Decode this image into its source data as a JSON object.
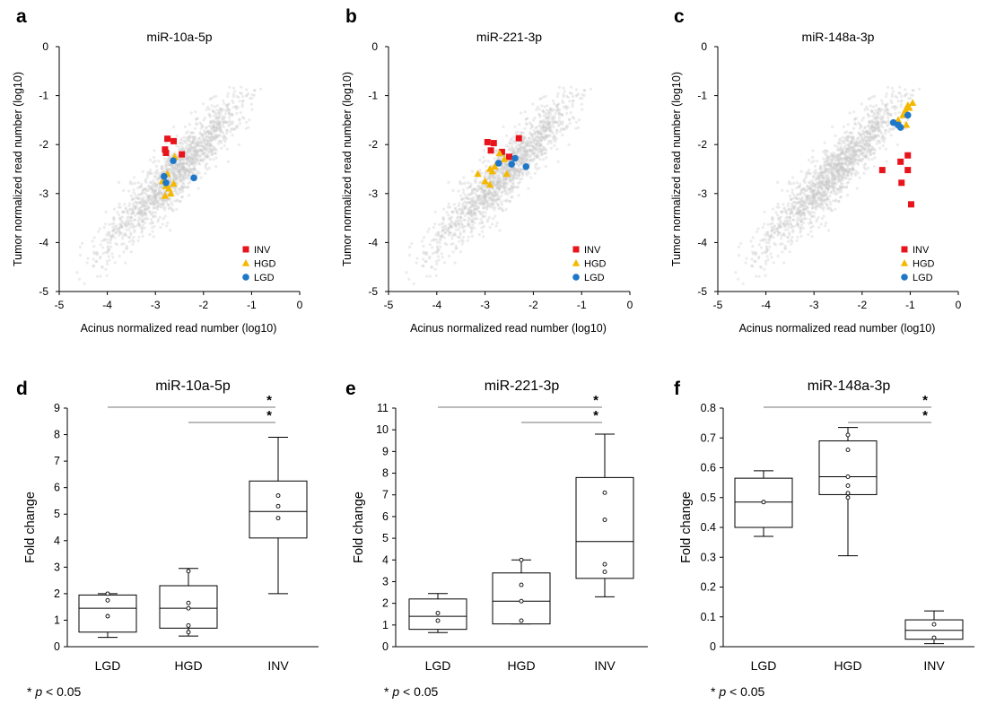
{
  "chart_data": [
    {
      "panel": "a",
      "type": "scatter",
      "title": "miR-10a-5p",
      "xlabel": "Acinus normalized read number (log10)",
      "ylabel": "Tumor normalized read number (log10)",
      "xlim": [
        -5,
        0
      ],
      "ylim": [
        -5,
        0
      ],
      "xticks": [
        -5,
        -4,
        -3,
        -2,
        -1,
        0
      ],
      "yticks": [
        0,
        -1,
        -2,
        -3,
        -4,
        -5
      ],
      "legend": [
        "INV",
        "HGD",
        "LGD"
      ],
      "colors": {
        "INV": "#e8141b",
        "HGD": "#f5b800",
        "LGD": "#1f77c8",
        "background": "#c8c8c8"
      },
      "series": [
        {
          "name": "INV",
          "marker": "square",
          "x": [
            -2.75,
            -2.62,
            -2.8,
            -2.78,
            -2.45
          ],
          "y": [
            -1.88,
            -1.93,
            -2.1,
            -2.17,
            -2.2
          ]
        },
        {
          "name": "HGD",
          "marker": "triangle",
          "x": [
            -2.6,
            -2.75,
            -2.85,
            -2.78,
            -2.72,
            -2.68,
            -2.8,
            -2.62
          ],
          "y": [
            -2.25,
            -2.6,
            -2.75,
            -2.85,
            -2.9,
            -3.0,
            -3.05,
            -2.8
          ]
        },
        {
          "name": "LGD",
          "marker": "circle",
          "x": [
            -2.63,
            -2.82,
            -2.78,
            -2.2
          ],
          "y": [
            -2.33,
            -2.65,
            -2.78,
            -2.68
          ]
        }
      ]
    },
    {
      "panel": "b",
      "type": "scatter",
      "title": "miR-221-3p",
      "xlabel": "Acinus normalized read number (log10)",
      "ylabel": "Tumor normalized read number (log10)",
      "xlim": [
        -5,
        0
      ],
      "ylim": [
        -5,
        0
      ],
      "xticks": [
        -5,
        -4,
        -3,
        -2,
        -1,
        0
      ],
      "yticks": [
        0,
        -1,
        -2,
        -3,
        -4,
        -5
      ],
      "legend": [
        "INV",
        "HGD",
        "LGD"
      ],
      "colors": {
        "INV": "#e8141b",
        "HGD": "#f5b800",
        "LGD": "#1f77c8",
        "background": "#c8c8c8"
      },
      "series": [
        {
          "name": "INV",
          "marker": "square",
          "x": [
            -2.95,
            -2.82,
            -2.88,
            -2.65,
            -2.5,
            -2.3
          ],
          "y": [
            -1.95,
            -1.97,
            -2.12,
            -2.15,
            -2.25,
            -1.87
          ]
        },
        {
          "name": "HGD",
          "marker": "triangle",
          "x": [
            -2.7,
            -2.6,
            -2.8,
            -2.9,
            -2.85,
            -3.15,
            -3.0,
            -2.9,
            -2.55
          ],
          "y": [
            -2.18,
            -2.3,
            -2.45,
            -2.5,
            -2.55,
            -2.6,
            -2.75,
            -2.82,
            -2.6
          ]
        },
        {
          "name": "LGD",
          "marker": "circle",
          "x": [
            -2.72,
            -2.45,
            -2.38,
            -2.15
          ],
          "y": [
            -2.38,
            -2.4,
            -2.28,
            -2.45
          ]
        }
      ]
    },
    {
      "panel": "c",
      "type": "scatter",
      "title": "miR-148a-3p",
      "xlabel": "Acinus normalized read number (log10)",
      "ylabel": "Tumor normalized read number (log10)",
      "xlim": [
        -5,
        0
      ],
      "ylim": [
        -5,
        0
      ],
      "xticks": [
        -5,
        -4,
        -3,
        -2,
        -1,
        0
      ],
      "yticks": [
        0,
        -1,
        -2,
        -3,
        -4,
        -5
      ],
      "legend": [
        "INV",
        "HGD",
        "LGD"
      ],
      "colors": {
        "INV": "#e8141b",
        "HGD": "#f5b800",
        "LGD": "#1f77c8",
        "background": "#c8c8c8"
      },
      "series": [
        {
          "name": "INV",
          "marker": "square",
          "x": [
            -1.58,
            -1.05,
            -1.2,
            -1.05,
            -1.18,
            -0.98
          ],
          "y": [
            -2.52,
            -2.22,
            -2.35,
            -2.52,
            -2.78,
            -3.22
          ]
        },
        {
          "name": "HGD",
          "marker": "triangle",
          "x": [
            -0.95,
            -1.02,
            -1.1,
            -1.15,
            -1.25,
            -1.08,
            -1.05
          ],
          "y": [
            -1.15,
            -1.25,
            -1.3,
            -1.4,
            -1.5,
            -1.6,
            -1.2
          ]
        },
        {
          "name": "LGD",
          "marker": "circle",
          "x": [
            -1.35,
            -1.25,
            -1.2,
            -1.05
          ],
          "y": [
            -1.55,
            -1.6,
            -1.65,
            -1.4
          ]
        }
      ]
    },
    {
      "panel": "d",
      "type": "box",
      "title": "miR-10a-5p",
      "categories": [
        "LGD",
        "HGD",
        "INV"
      ],
      "ylabel": "Fold change",
      "ylim": [
        0,
        9
      ],
      "yticks": [
        0,
        1,
        2,
        3,
        4,
        5,
        6,
        7,
        8,
        9
      ],
      "boxes": [
        {
          "name": "LGD",
          "min": 0.35,
          "q1": 0.55,
          "median": 1.45,
          "q3": 1.95,
          "max": 2.0,
          "points": [
            1.15,
            1.75,
            2.0
          ]
        },
        {
          "name": "HGD",
          "min": 0.4,
          "q1": 0.7,
          "median": 1.45,
          "q3": 2.3,
          "max": 2.95,
          "points": [
            0.55,
            0.8,
            1.45,
            1.65,
            2.85
          ]
        },
        {
          "name": "INV",
          "min": 2.0,
          "q1": 4.1,
          "median": 5.1,
          "q3": 6.25,
          "max": 7.9,
          "points": [
            4.85,
            5.3,
            5.7
          ]
        }
      ],
      "significance": [
        {
          "from": "LGD",
          "to": "INV",
          "label": "*"
        },
        {
          "from": "HGD",
          "to": "INV",
          "label": "*"
        }
      ],
      "footnote": {
        "star": "*",
        "p": "p",
        "rest": "< 0.05"
      }
    },
    {
      "panel": "e",
      "type": "box",
      "title": "miR-221-3p",
      "categories": [
        "LGD",
        "HGD",
        "INV"
      ],
      "ylabel": "Fold change",
      "ylim": [
        0,
        11
      ],
      "yticks": [
        0,
        1,
        2,
        3,
        4,
        5,
        6,
        7,
        8,
        9,
        10,
        11
      ],
      "boxes": [
        {
          "name": "LGD",
          "min": 0.65,
          "q1": 0.8,
          "median": 1.4,
          "q3": 2.2,
          "max": 2.45,
          "points": [
            1.2,
            1.55
          ]
        },
        {
          "name": "HGD",
          "min": 1.05,
          "q1": 1.05,
          "median": 2.1,
          "q3": 3.4,
          "max": 4.0,
          "points": [
            1.2,
            2.1,
            2.85,
            4.0
          ]
        },
        {
          "name": "INV",
          "min": 2.3,
          "q1": 3.15,
          "median": 4.85,
          "q3": 7.8,
          "max": 9.8,
          "points": [
            3.45,
            3.8,
            5.85,
            7.1
          ]
        }
      ],
      "significance": [
        {
          "from": "LGD",
          "to": "INV",
          "label": "*"
        },
        {
          "from": "HGD",
          "to": "INV",
          "label": "*"
        }
      ],
      "footnote": {
        "star": "*",
        "p": "p",
        "rest": "< 0.05"
      }
    },
    {
      "panel": "f",
      "type": "box",
      "title": "miR-148a-3p",
      "categories": [
        "LGD",
        "HGD",
        "INV"
      ],
      "ylabel": "Fold change",
      "ylim": [
        0,
        0.8
      ],
      "yticks": [
        0,
        0.1,
        0.2,
        0.3,
        0.4,
        0.5,
        0.6,
        0.7,
        0.8
      ],
      "boxes": [
        {
          "name": "LGD",
          "min": 0.37,
          "q1": 0.4,
          "median": 0.485,
          "q3": 0.565,
          "max": 0.59,
          "points": [
            0.485
          ]
        },
        {
          "name": "HGD",
          "min": 0.305,
          "q1": 0.51,
          "median": 0.57,
          "q3": 0.69,
          "max": 0.735,
          "points": [
            0.5,
            0.515,
            0.54,
            0.57,
            0.66,
            0.71
          ]
        },
        {
          "name": "INV",
          "min": 0.01,
          "q1": 0.025,
          "median": 0.055,
          "q3": 0.09,
          "max": 0.12,
          "points": [
            0.03,
            0.075
          ]
        }
      ],
      "significance": [
        {
          "from": "LGD",
          "to": "INV",
          "label": "*"
        },
        {
          "from": "HGD",
          "to": "INV",
          "label": "*"
        }
      ],
      "footnote": {
        "star": "*",
        "p": "p",
        "rest": "< 0.05"
      }
    }
  ]
}
